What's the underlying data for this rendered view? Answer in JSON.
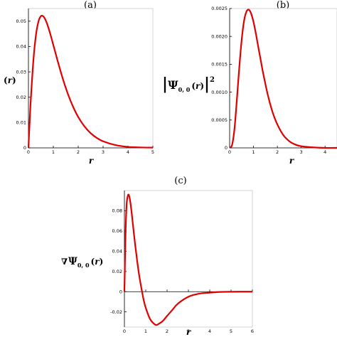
{
  "chart_data": [
    {
      "id": "a",
      "type": "line",
      "title": "(a)",
      "xlabel": "r",
      "ylabel_parts": [
        "(",
        "r",
        ")"
      ],
      "xlim": [
        0,
        5
      ],
      "ylim": [
        0,
        0.055
      ],
      "xticks": [
        "0",
        "1",
        "2",
        "3",
        "4",
        "5"
      ],
      "yticks": [
        "0",
        "0.01",
        "0.02",
        "0.03",
        "0.04",
        "0.05"
      ],
      "series": [
        {
          "x": [
            0,
            0.05,
            0.1,
            0.2,
            0.3,
            0.4,
            0.5,
            0.6,
            0.7,
            0.8,
            0.9,
            1.0,
            1.1,
            1.2,
            1.4,
            1.6,
            1.8,
            2.0,
            2.25,
            2.5,
            2.75,
            3.0,
            3.5,
            4.0,
            4.5,
            5.0
          ],
          "y": [
            0,
            0.0106,
            0.0199,
            0.0347,
            0.0444,
            0.0498,
            0.052,
            0.0519,
            0.0502,
            0.0475,
            0.0442,
            0.0406,
            0.037,
            0.0334,
            0.0267,
            0.0209,
            0.0161,
            0.0122,
            0.0085,
            0.0058,
            0.0039,
            0.0026,
            0.0011,
            0.0004,
            0.0002,
            0.0001
          ]
        }
      ]
    },
    {
      "id": "b",
      "type": "line",
      "title": "(b)",
      "xlabel": "r",
      "ylabel_parts": [
        "|",
        "Ψ",
        "0, 0",
        "(",
        "r",
        ")",
        "|",
        "2"
      ],
      "xlim": [
        0,
        4.5
      ],
      "ylim": [
        0,
        0.0025
      ],
      "xticks": [
        "0",
        "1",
        "2",
        "3",
        "4"
      ],
      "yticks": [
        "0",
        "0.0005",
        "0.0010",
        "0.0015",
        "0.0020",
        "0.0025"
      ],
      "series": [
        {
          "x": [
            0,
            0.1,
            0.2,
            0.3,
            0.4,
            0.5,
            0.6,
            0.7,
            0.8,
            0.9,
            1.0,
            1.1,
            1.2,
            1.3,
            1.4,
            1.6,
            1.8,
            2.0,
            2.25,
            2.5,
            2.75,
            3.0,
            3.5,
            4.0,
            4.5
          ],
          "y": [
            0,
            5e-05,
            0.00033,
            0.00085,
            0.00142,
            0.00192,
            0.00227,
            0.00244,
            0.00248,
            0.00241,
            0.00226,
            0.00205,
            0.00181,
            0.00158,
            0.00135,
            0.00095,
            0.00064,
            0.00042,
            0.00023,
            0.00012,
            6e-05,
            3e-05,
            1e-05,
            0.0,
            0.0
          ]
        }
      ]
    },
    {
      "id": "c",
      "type": "line",
      "title": "(c)",
      "xlabel": "r",
      "ylabel_parts": [
        "∇",
        "Ψ",
        "0, 0",
        "(",
        "r",
        ")"
      ],
      "xlim": [
        0,
        6
      ],
      "ylim": [
        -0.035,
        0.1
      ],
      "xticks": [
        "0",
        "1",
        "2",
        "3",
        "4",
        "5",
        "6"
      ],
      "yticks": [
        "-0.02",
        "0",
        "0.02",
        "0.04",
        "0.06",
        "0.08"
      ],
      "series": [
        {
          "x": [
            0,
            0.05,
            0.1,
            0.15,
            0.2,
            0.25,
            0.3,
            0.35,
            0.4,
            0.5,
            0.6,
            0.7,
            0.8,
            0.9,
            1.0,
            1.2,
            1.4,
            1.5,
            1.6,
            1.8,
            2.0,
            2.25,
            2.5,
            3.0,
            3.5,
            4.0,
            4.5,
            5.0,
            6.0
          ],
          "y": [
            0,
            0.055,
            0.085,
            0.094,
            0.096,
            0.092,
            0.085,
            0.076,
            0.066,
            0.047,
            0.03,
            0.015,
            0.003,
            -0.008,
            -0.016,
            -0.027,
            -0.032,
            -0.033,
            -0.032,
            -0.029,
            -0.024,
            -0.018,
            -0.012,
            -0.005,
            -0.002,
            -0.001,
            -0.0003,
            -0.0001,
            0
          ]
        }
      ]
    }
  ]
}
